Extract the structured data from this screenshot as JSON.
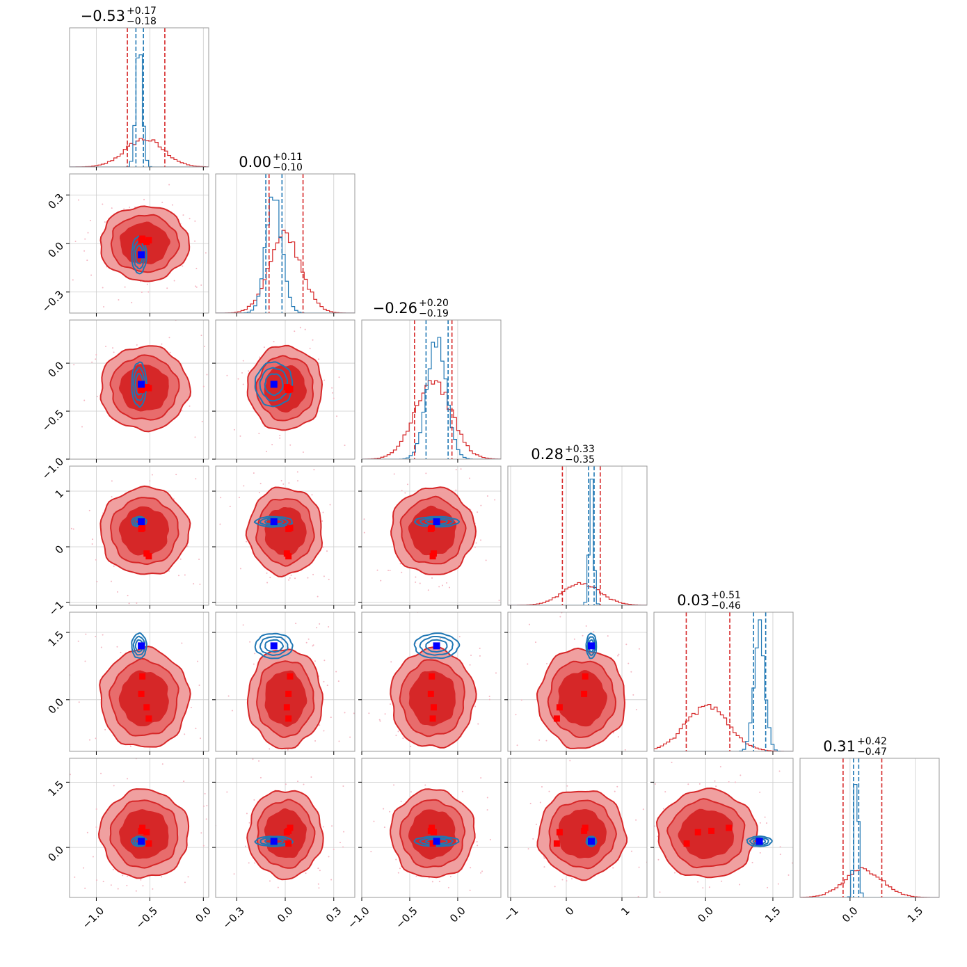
{
  "colors": {
    "reference": "#d62728",
    "reference_light": "#f0a0a0",
    "reference_mid": "#e86c6c",
    "comparison": "#1f77b4",
    "truth_marker": "#0000ff",
    "sample_marker": "#ff0000",
    "scatter": "#f4b6c2"
  },
  "chart_data": {
    "type": "corner",
    "parameter_count": 6,
    "grid": true,
    "titles": [
      {
        "value": "−0.53",
        "plus": "+0.17",
        "minus": "−0.18"
      },
      {
        "value": "0.00",
        "plus": "+0.11",
        "minus": "−0.10"
      },
      {
        "value": "−0.26",
        "plus": "+0.20",
        "minus": "−0.19"
      },
      {
        "value": "0.28",
        "plus": "+0.33",
        "minus": "−0.35"
      },
      {
        "value": "0.03",
        "plus": "+0.51",
        "minus": "−0.46"
      },
      {
        "value": "0.31",
        "plus": "+0.42",
        "minus": "−0.47"
      }
    ],
    "parameters": [
      {
        "range": [
          -1.25,
          0.05
        ],
        "ticks": [
          -1.0,
          -0.5,
          0.0
        ],
        "tick_labels": [
          "−1.0",
          "−0.5",
          "0.0"
        ]
      },
      {
        "range": [
          -0.43,
          0.43
        ],
        "ticks": [
          -0.3,
          0.0,
          0.3
        ],
        "tick_labels": [
          "−0.3",
          "0.0",
          "0.3"
        ]
      },
      {
        "range": [
          -1.0,
          0.45
        ],
        "ticks": [
          -1.0,
          -0.5,
          0.0
        ],
        "tick_labels": [
          "−1.0",
          "−0.5",
          "0.0"
        ]
      },
      {
        "range": [
          -1.05,
          1.45
        ],
        "ticks": [
          -1,
          0,
          1
        ],
        "tick_labels": [
          "−1",
          "0",
          "1"
        ]
      },
      {
        "range": [
          -1.15,
          1.95
        ],
        "ticks": [
          0.0,
          1.5
        ],
        "tick_labels": [
          "0.0",
          "1.5"
        ]
      },
      {
        "range": [
          -1.15,
          2.05
        ],
        "ticks": [
          0.0,
          1.5
        ],
        "tick_labels": [
          "0.0",
          "1.5"
        ]
      }
    ],
    "reference_posterior": {
      "center": [
        -0.55,
        0.0,
        -0.26,
        0.28,
        0.03,
        0.31
      ],
      "sigma": [
        0.18,
        0.1,
        0.19,
        0.34,
        0.48,
        0.44
      ],
      "quantiles": [
        [
          -0.71,
          -0.36
        ],
        [
          -0.1,
          0.11
        ],
        [
          -0.45,
          -0.06
        ],
        [
          -0.07,
          0.61
        ],
        [
          -0.43,
          0.54
        ],
        [
          -0.16,
          0.73
        ]
      ]
    },
    "comparison_posterior": {
      "center": [
        -0.6,
        -0.07,
        -0.22,
        0.45,
        1.2,
        0.14
      ],
      "sigma": [
        0.03,
        0.05,
        0.1,
        0.04,
        0.12,
        0.05
      ],
      "quantiles": [
        [
          -0.63,
          -0.56
        ],
        [
          -0.12,
          -0.02
        ],
        [
          -0.33,
          -0.1
        ],
        [
          0.4,
          0.5
        ],
        [
          1.07,
          1.34
        ],
        [
          0.08,
          0.2
        ]
      ]
    },
    "truth_point": [
      -0.58,
      -0.07,
      -0.22,
      0.45,
      1.2,
      0.14
    ],
    "sample_points": [
      [
        -0.57,
        0.03,
        -0.27,
        0.34,
        0.52,
        0.45
      ],
      [
        -0.58,
        0.02,
        -0.28,
        0.32,
        0.13,
        0.38
      ],
      [
        -0.53,
        0.01,
        -0.25,
        -0.12,
        -0.17,
        0.35
      ],
      [
        -0.51,
        0.02,
        -0.26,
        -0.17,
        -0.42,
        0.09
      ]
    ]
  }
}
